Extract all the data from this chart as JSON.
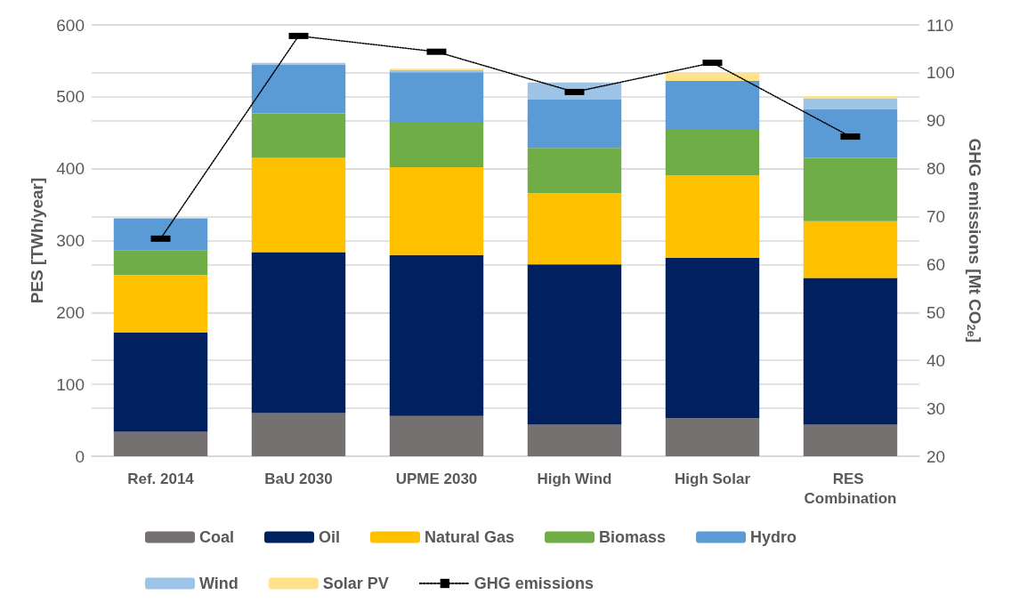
{
  "chart_data": {
    "type": "bar",
    "stacked": true,
    "categories": [
      "Ref. 2014",
      "BaU 2030",
      "UPME 2030",
      "High Wind",
      "High Solar",
      "RES Combination"
    ],
    "ylabel": "PES [TWh/year]",
    "y2label": "GHG emissions [Mt CO$_{2e}$]",
    "ylim": [
      0,
      600
    ],
    "yticks": [
      0,
      100,
      200,
      300,
      400,
      500,
      600
    ],
    "y2lim": [
      20,
      110
    ],
    "y2ticks": [
      20,
      30,
      40,
      50,
      60,
      70,
      80,
      90,
      100,
      110
    ],
    "grid": "y",
    "legend": "bottom",
    "series": [
      {
        "name": "Coal",
        "color": "#767171",
        "values": [
          34,
          60,
          56,
          44,
          53,
          44
        ]
      },
      {
        "name": "Oil",
        "color": "#002060",
        "values": [
          138,
          224,
          224,
          223,
          223,
          204
        ]
      },
      {
        "name": "Natural Gas",
        "color": "#ffc000",
        "values": [
          80,
          131,
          122,
          99,
          115,
          79
        ]
      },
      {
        "name": "Biomass",
        "color": "#70ad47",
        "values": [
          34,
          62,
          62,
          63,
          63,
          88
        ]
      },
      {
        "name": "Hydro",
        "color": "#5b9bd5",
        "values": [
          45,
          68,
          70,
          67,
          68,
          68
        ]
      },
      {
        "name": "Wind",
        "color": "#9dc3e6",
        "values": [
          null,
          2,
          3,
          24,
          0,
          15
        ]
      },
      {
        "name": "Solar PV",
        "color": "#ffe38a",
        "values": [
          0,
          0,
          2,
          0,
          11,
          3
        ]
      },
      {
        "name": "GHG emissions",
        "type": "line",
        "axis": "y2",
        "color": "#000000",
        "marker": "square",
        "line_style": "dotted",
        "values": [
          65.4,
          107.7,
          104.4,
          96.0,
          102.1,
          86.7
        ]
      }
    ]
  }
}
